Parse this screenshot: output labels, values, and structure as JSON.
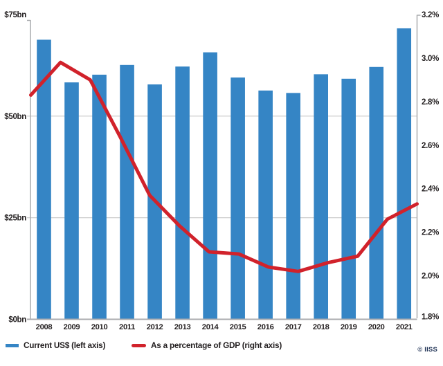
{
  "chart_data": {
    "type": "bar+line combo",
    "title": "",
    "categories": [
      "2008",
      "2009",
      "2010",
      "2011",
      "2012",
      "2013",
      "2014",
      "2015",
      "2016",
      "2017",
      "2018",
      "2019",
      "2020",
      "2021"
    ],
    "series": [
      {
        "name": "Current US$ (left axis)",
        "type": "bar",
        "axis": "left",
        "unit": "US$ bn",
        "values": [
          68.8,
          58.3,
          60.2,
          62.6,
          57.8,
          62.2,
          65.7,
          59.5,
          56.3,
          55.7,
          60.3,
          59.2,
          62.1,
          71.6
        ]
      },
      {
        "name": "As a percentage of GDP (right axis)",
        "type": "line",
        "axis": "right",
        "unit": "% of GDP",
        "values": [
          2.83,
          2.98,
          2.9,
          2.64,
          2.37,
          2.23,
          2.11,
          2.1,
          2.04,
          2.02,
          2.06,
          2.09,
          2.26,
          2.33
        ]
      }
    ],
    "left_axis": {
      "min": 0,
      "max": 75,
      "ticks": [
        {
          "label": "$75bn",
          "value": 75
        },
        {
          "label": "$50bn",
          "value": 50
        },
        {
          "label": "$25bn",
          "value": 25
        },
        {
          "label": "$0bn",
          "value": 0
        }
      ],
      "gridline_values": [
        50,
        25
      ]
    },
    "right_axis": {
      "min": 1.8,
      "max": 3.2,
      "ticks": [
        {
          "label": "3.2%",
          "value": 3.2
        },
        {
          "label": "3.0%",
          "value": 3.0
        },
        {
          "label": "2.8%",
          "value": 2.8
        },
        {
          "label": "2.6%",
          "value": 2.6
        },
        {
          "label": "2.4%",
          "value": 2.4
        },
        {
          "label": "2.2%",
          "value": 2.2
        },
        {
          "label": "2.0%",
          "value": 2.0
        },
        {
          "label": "1.8%",
          "value": 1.8
        }
      ]
    },
    "legend": {
      "bar_label": "Current US$ (left axis)",
      "line_label": "As a percentage of GDP (right axis)"
    },
    "credit": "© IISS",
    "colors": {
      "bar": "#3585c5",
      "line": "#d1222b",
      "text": "#231f20",
      "axis": "#a9abae",
      "grid": "#c8c8c8",
      "credit": "#1e3154"
    },
    "layout_hints": {
      "grid": "horizontal only",
      "legend_position": "bottom-left",
      "credit_position": "bottom-right"
    }
  }
}
